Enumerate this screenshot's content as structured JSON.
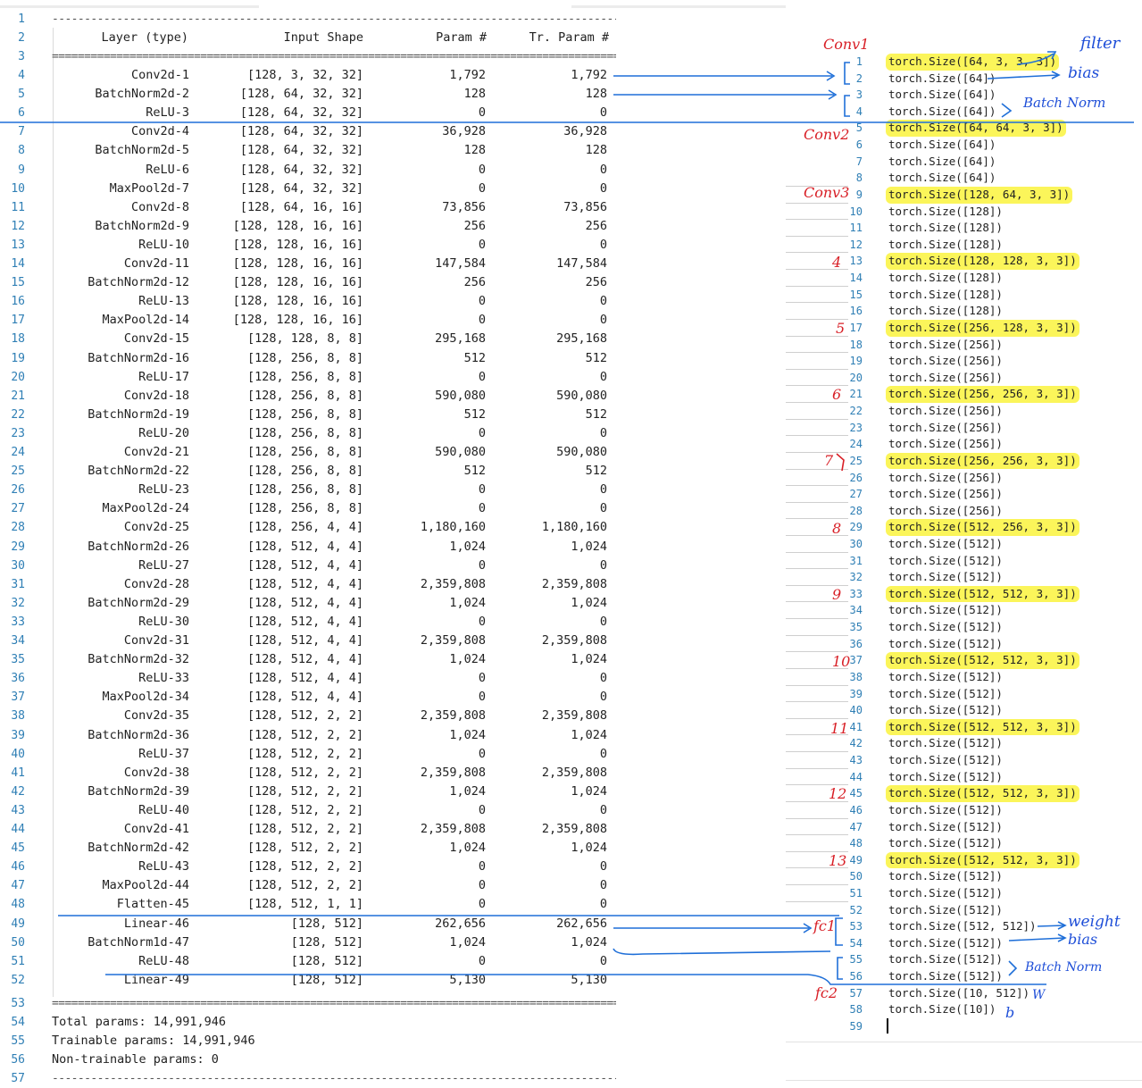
{
  "summary": {
    "header": {
      "layer": "Layer (type)",
      "shape": "Input Shape",
      "param": "Param #",
      "tr": "Tr. Param #"
    },
    "separator_dash": "-----------------------------------------------------------------------------------------",
    "separator_eq": "=========================================================================================",
    "layers": [
      {
        "line": "4",
        "name": "Conv2d-1",
        "shape": "[128, 3, 32, 32]",
        "param": "1,792",
        "tr": "1,792"
      },
      {
        "line": "5",
        "name": "BatchNorm2d-2",
        "shape": "[128, 64, 32, 32]",
        "param": "128",
        "tr": "128"
      },
      {
        "line": "6",
        "name": "ReLU-3",
        "shape": "[128, 64, 32, 32]",
        "param": "0",
        "tr": "0"
      },
      {
        "line": "7",
        "name": "Conv2d-4",
        "shape": "[128, 64, 32, 32]",
        "param": "36,928",
        "tr": "36,928"
      },
      {
        "line": "8",
        "name": "BatchNorm2d-5",
        "shape": "[128, 64, 32, 32]",
        "param": "128",
        "tr": "128"
      },
      {
        "line": "9",
        "name": "ReLU-6",
        "shape": "[128, 64, 32, 32]",
        "param": "0",
        "tr": "0"
      },
      {
        "line": "10",
        "name": "MaxPool2d-7",
        "shape": "[128, 64, 32, 32]",
        "param": "0",
        "tr": "0"
      },
      {
        "line": "11",
        "name": "Conv2d-8",
        "shape": "[128, 64, 16, 16]",
        "param": "73,856",
        "tr": "73,856"
      },
      {
        "line": "12",
        "name": "BatchNorm2d-9",
        "shape": "[128, 128, 16, 16]",
        "param": "256",
        "tr": "256"
      },
      {
        "line": "13",
        "name": "ReLU-10",
        "shape": "[128, 128, 16, 16]",
        "param": "0",
        "tr": "0"
      },
      {
        "line": "14",
        "name": "Conv2d-11",
        "shape": "[128, 128, 16, 16]",
        "param": "147,584",
        "tr": "147,584"
      },
      {
        "line": "15",
        "name": "BatchNorm2d-12",
        "shape": "[128, 128, 16, 16]",
        "param": "256",
        "tr": "256"
      },
      {
        "line": "16",
        "name": "ReLU-13",
        "shape": "[128, 128, 16, 16]",
        "param": "0",
        "tr": "0"
      },
      {
        "line": "17",
        "name": "MaxPool2d-14",
        "shape": "[128, 128, 16, 16]",
        "param": "0",
        "tr": "0"
      },
      {
        "line": "18",
        "name": "Conv2d-15",
        "shape": "[128, 128, 8, 8]",
        "param": "295,168",
        "tr": "295,168"
      },
      {
        "line": "19",
        "name": "BatchNorm2d-16",
        "shape": "[128, 256, 8, 8]",
        "param": "512",
        "tr": "512"
      },
      {
        "line": "20",
        "name": "ReLU-17",
        "shape": "[128, 256, 8, 8]",
        "param": "0",
        "tr": "0"
      },
      {
        "line": "21",
        "name": "Conv2d-18",
        "shape": "[128, 256, 8, 8]",
        "param": "590,080",
        "tr": "590,080"
      },
      {
        "line": "22",
        "name": "BatchNorm2d-19",
        "shape": "[128, 256, 8, 8]",
        "param": "512",
        "tr": "512"
      },
      {
        "line": "23",
        "name": "ReLU-20",
        "shape": "[128, 256, 8, 8]",
        "param": "0",
        "tr": "0"
      },
      {
        "line": "24",
        "name": "Conv2d-21",
        "shape": "[128, 256, 8, 8]",
        "param": "590,080",
        "tr": "590,080"
      },
      {
        "line": "25",
        "name": "BatchNorm2d-22",
        "shape": "[128, 256, 8, 8]",
        "param": "512",
        "tr": "512"
      },
      {
        "line": "26",
        "name": "ReLU-23",
        "shape": "[128, 256, 8, 8]",
        "param": "0",
        "tr": "0"
      },
      {
        "line": "27",
        "name": "MaxPool2d-24",
        "shape": "[128, 256, 8, 8]",
        "param": "0",
        "tr": "0"
      },
      {
        "line": "28",
        "name": "Conv2d-25",
        "shape": "[128, 256, 4, 4]",
        "param": "1,180,160",
        "tr": "1,180,160"
      },
      {
        "line": "29",
        "name": "BatchNorm2d-26",
        "shape": "[128, 512, 4, 4]",
        "param": "1,024",
        "tr": "1,024"
      },
      {
        "line": "30",
        "name": "ReLU-27",
        "shape": "[128, 512, 4, 4]",
        "param": "0",
        "tr": "0"
      },
      {
        "line": "31",
        "name": "Conv2d-28",
        "shape": "[128, 512, 4, 4]",
        "param": "2,359,808",
        "tr": "2,359,808"
      },
      {
        "line": "32",
        "name": "BatchNorm2d-29",
        "shape": "[128, 512, 4, 4]",
        "param": "1,024",
        "tr": "1,024"
      },
      {
        "line": "33",
        "name": "ReLU-30",
        "shape": "[128, 512, 4, 4]",
        "param": "0",
        "tr": "0"
      },
      {
        "line": "34",
        "name": "Conv2d-31",
        "shape": "[128, 512, 4, 4]",
        "param": "2,359,808",
        "tr": "2,359,808"
      },
      {
        "line": "35",
        "name": "BatchNorm2d-32",
        "shape": "[128, 512, 4, 4]",
        "param": "1,024",
        "tr": "1,024"
      },
      {
        "line": "36",
        "name": "ReLU-33",
        "shape": "[128, 512, 4, 4]",
        "param": "0",
        "tr": "0"
      },
      {
        "line": "37",
        "name": "MaxPool2d-34",
        "shape": "[128, 512, 4, 4]",
        "param": "0",
        "tr": "0"
      },
      {
        "line": "38",
        "name": "Conv2d-35",
        "shape": "[128, 512, 2, 2]",
        "param": "2,359,808",
        "tr": "2,359,808"
      },
      {
        "line": "39",
        "name": "BatchNorm2d-36",
        "shape": "[128, 512, 2, 2]",
        "param": "1,024",
        "tr": "1,024"
      },
      {
        "line": "40",
        "name": "ReLU-37",
        "shape": "[128, 512, 2, 2]",
        "param": "0",
        "tr": "0"
      },
      {
        "line": "41",
        "name": "Conv2d-38",
        "shape": "[128, 512, 2, 2]",
        "param": "2,359,808",
        "tr": "2,359,808"
      },
      {
        "line": "42",
        "name": "BatchNorm2d-39",
        "shape": "[128, 512, 2, 2]",
        "param": "1,024",
        "tr": "1,024"
      },
      {
        "line": "43",
        "name": "ReLU-40",
        "shape": "[128, 512, 2, 2]",
        "param": "0",
        "tr": "0"
      },
      {
        "line": "44",
        "name": "Conv2d-41",
        "shape": "[128, 512, 2, 2]",
        "param": "2,359,808",
        "tr": "2,359,808"
      },
      {
        "line": "45",
        "name": "BatchNorm2d-42",
        "shape": "[128, 512, 2, 2]",
        "param": "1,024",
        "tr": "1,024"
      },
      {
        "line": "46",
        "name": "ReLU-43",
        "shape": "[128, 512, 2, 2]",
        "param": "0",
        "tr": "0"
      },
      {
        "line": "47",
        "name": "MaxPool2d-44",
        "shape": "[128, 512, 2, 2]",
        "param": "0",
        "tr": "0"
      },
      {
        "line": "48",
        "name": "Flatten-45",
        "shape": "[128, 512, 1, 1]",
        "param": "0",
        "tr": "0"
      },
      {
        "line": "49",
        "name": "Linear-46",
        "shape": "[128, 512]",
        "param": "262,656",
        "tr": "262,656"
      },
      {
        "line": "50",
        "name": "BatchNorm1d-47",
        "shape": "[128, 512]",
        "param": "1,024",
        "tr": "1,024"
      },
      {
        "line": "51",
        "name": "ReLU-48",
        "shape": "[128, 512]",
        "param": "0",
        "tr": "0"
      },
      {
        "line": "52",
        "name": "Linear-49",
        "shape": "[128, 512]",
        "param": "5,130",
        "tr": "5,130"
      }
    ],
    "totals": [
      {
        "line": "54",
        "text": "Total params: 14,991,946"
      },
      {
        "line": "55",
        "text": "Trainable params: 14,991,946"
      },
      {
        "line": "56",
        "text": "Non-trainable params: 0"
      }
    ],
    "line_numbers": {
      "first": "1",
      "header": "2",
      "eq_top": "3",
      "eq_bottom": "53",
      "last": "57"
    }
  },
  "sizes": {
    "lines": [
      {
        "n": "1",
        "text": "torch.Size([64, 3, 3, 3])",
        "hl": true
      },
      {
        "n": "2",
        "text": "torch.Size([64])",
        "hl": false
      },
      {
        "n": "3",
        "text": "torch.Size([64])",
        "hl": false
      },
      {
        "n": "4",
        "text": "torch.Size([64])",
        "hl": false
      },
      {
        "n": "5",
        "text": "torch.Size([64, 64, 3, 3])",
        "hl": true
      },
      {
        "n": "6",
        "text": "torch.Size([64])",
        "hl": false
      },
      {
        "n": "7",
        "text": "torch.Size([64])",
        "hl": false
      },
      {
        "n": "8",
        "text": "torch.Size([64])",
        "hl": false
      },
      {
        "n": "9",
        "text": "torch.Size([128, 64, 3, 3])",
        "hl": true
      },
      {
        "n": "10",
        "text": "torch.Size([128])",
        "hl": false
      },
      {
        "n": "11",
        "text": "torch.Size([128])",
        "hl": false
      },
      {
        "n": "12",
        "text": "torch.Size([128])",
        "hl": false
      },
      {
        "n": "13",
        "text": "torch.Size([128, 128, 3, 3])",
        "hl": true
      },
      {
        "n": "14",
        "text": "torch.Size([128])",
        "hl": false
      },
      {
        "n": "15",
        "text": "torch.Size([128])",
        "hl": false
      },
      {
        "n": "16",
        "text": "torch.Size([128])",
        "hl": false
      },
      {
        "n": "17",
        "text": "torch.Size([256, 128, 3, 3])",
        "hl": true
      },
      {
        "n": "18",
        "text": "torch.Size([256])",
        "hl": false
      },
      {
        "n": "19",
        "text": "torch.Size([256])",
        "hl": false
      },
      {
        "n": "20",
        "text": "torch.Size([256])",
        "hl": false
      },
      {
        "n": "21",
        "text": "torch.Size([256, 256, 3, 3])",
        "hl": true
      },
      {
        "n": "22",
        "text": "torch.Size([256])",
        "hl": false
      },
      {
        "n": "23",
        "text": "torch.Size([256])",
        "hl": false
      },
      {
        "n": "24",
        "text": "torch.Size([256])",
        "hl": false
      },
      {
        "n": "25",
        "text": "torch.Size([256, 256, 3, 3])",
        "hl": true
      },
      {
        "n": "26",
        "text": "torch.Size([256])",
        "hl": false
      },
      {
        "n": "27",
        "text": "torch.Size([256])",
        "hl": false
      },
      {
        "n": "28",
        "text": "torch.Size([256])",
        "hl": false
      },
      {
        "n": "29",
        "text": "torch.Size([512, 256, 3, 3])",
        "hl": true
      },
      {
        "n": "30",
        "text": "torch.Size([512])",
        "hl": false
      },
      {
        "n": "31",
        "text": "torch.Size([512])",
        "hl": false
      },
      {
        "n": "32",
        "text": "torch.Size([512])",
        "hl": false
      },
      {
        "n": "33",
        "text": "torch.Size([512, 512, 3, 3])",
        "hl": true
      },
      {
        "n": "34",
        "text": "torch.Size([512])",
        "hl": false
      },
      {
        "n": "35",
        "text": "torch.Size([512])",
        "hl": false
      },
      {
        "n": "36",
        "text": "torch.Size([512])",
        "hl": false
      },
      {
        "n": "37",
        "text": "torch.Size([512, 512, 3, 3])",
        "hl": true
      },
      {
        "n": "38",
        "text": "torch.Size([512])",
        "hl": false
      },
      {
        "n": "39",
        "text": "torch.Size([512])",
        "hl": false
      },
      {
        "n": "40",
        "text": "torch.Size([512])",
        "hl": false
      },
      {
        "n": "41",
        "text": "torch.Size([512, 512, 3, 3])",
        "hl": true
      },
      {
        "n": "42",
        "text": "torch.Size([512])",
        "hl": false
      },
      {
        "n": "43",
        "text": "torch.Size([512])",
        "hl": false
      },
      {
        "n": "44",
        "text": "torch.Size([512])",
        "hl": false
      },
      {
        "n": "45",
        "text": "torch.Size([512, 512, 3, 3])",
        "hl": true
      },
      {
        "n": "46",
        "text": "torch.Size([512])",
        "hl": false
      },
      {
        "n": "47",
        "text": "torch.Size([512])",
        "hl": false
      },
      {
        "n": "48",
        "text": "torch.Size([512])",
        "hl": false
      },
      {
        "n": "49",
        "text": "torch.Size([512, 512, 3, 3])",
        "hl": true
      },
      {
        "n": "50",
        "text": "torch.Size([512])",
        "hl": false
      },
      {
        "n": "51",
        "text": "torch.Size([512])",
        "hl": false
      },
      {
        "n": "52",
        "text": "torch.Size([512])",
        "hl": false
      },
      {
        "n": "53",
        "text": "torch.Size([512, 512])",
        "hl": false
      },
      {
        "n": "54",
        "text": "torch.Size([512])",
        "hl": false
      },
      {
        "n": "55",
        "text": "torch.Size([512])",
        "hl": false
      },
      {
        "n": "56",
        "text": "torch.Size([512])",
        "hl": false
      },
      {
        "n": "57",
        "text": "torch.Size([10, 512])",
        "hl": false
      },
      {
        "n": "58",
        "text": "torch.Size([10])",
        "hl": false
      },
      {
        "n": "59",
        "text": "",
        "hl": false
      }
    ]
  },
  "annotations": {
    "conv1": "Conv1",
    "conv2": "Conv2",
    "conv3": "Conv3",
    "nums": [
      "4",
      "5",
      "6",
      "7",
      "8",
      "9",
      "10",
      "11",
      "12",
      "13"
    ],
    "fc1": "fc1",
    "fc2": "fc2",
    "filter": "filter",
    "bias": "bias",
    "batch_norm_1": "Batch Norm",
    "weight": "weight",
    "bias2": "bias",
    "batch_norm_2": "Batch Norm",
    "w": "W",
    "b": "b",
    "colors": {
      "red": "#d81f26",
      "blue": "#1f4fd8",
      "highlight": "#fbf55a"
    }
  }
}
